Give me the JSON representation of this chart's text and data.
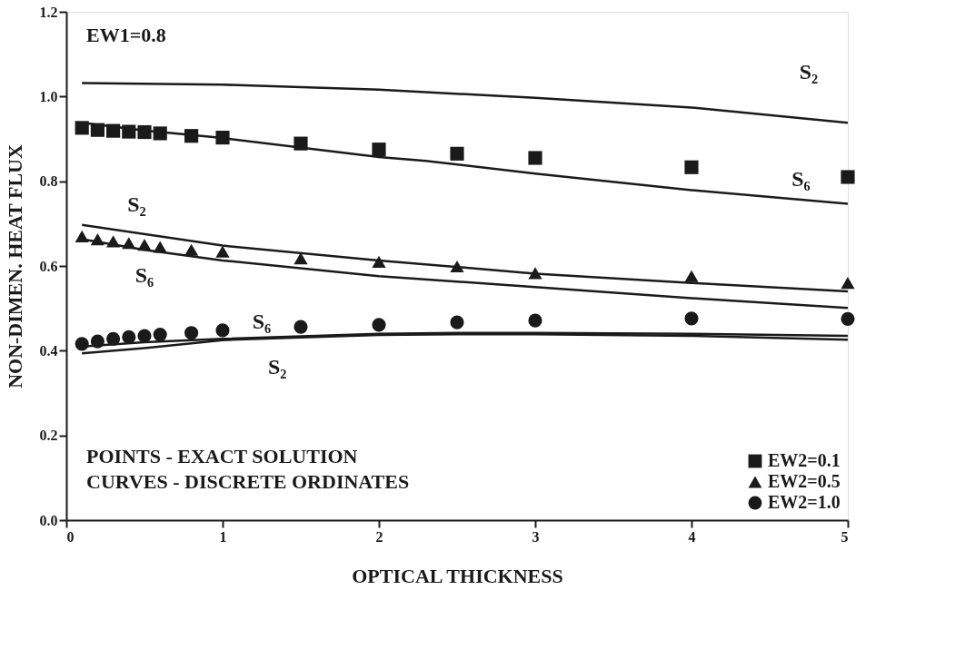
{
  "chart_data": {
    "type": "line",
    "xlabel": "OPTICAL THICKNESS",
    "ylabel": "NON-DIMEN. HEAT FLUX",
    "xlim": [
      0,
      5
    ],
    "xticks": [
      0,
      1,
      2,
      3,
      4,
      5
    ],
    "ylim": [
      0,
      1.2
    ],
    "yticks": [
      {
        "value": 0,
        "label": "0.0"
      },
      0.2,
      0.4,
      0.6,
      0.8,
      {
        "value": 1,
        "label": "1.0"
      },
      1.2
    ],
    "grid": false,
    "legend": "bottom right",
    "series": [
      {
        "type": "scatter",
        "name": "EW2=0.1",
        "marker": "square",
        "color": "#1a1a1a",
        "x": [
          0.1,
          0.2,
          0.3,
          0.4,
          0.5,
          0.6,
          0.8,
          1.0,
          1.5,
          2.0,
          2.5,
          3.0,
          4.0,
          5.0
        ],
        "values": [
          0.926,
          0.921,
          0.919,
          0.917,
          0.916,
          0.913,
          0.907,
          0.903,
          0.889,
          0.875,
          0.865,
          0.855,
          0.833,
          0.81
        ]
      },
      {
        "type": "scatter",
        "name": "EW2=0.5",
        "marker": "triangle",
        "color": "#1a1a1a",
        "x": [
          0.1,
          0.2,
          0.3,
          0.4,
          0.5,
          0.6,
          0.8,
          1.0,
          1.5,
          2.0,
          2.5,
          3.0,
          4.0,
          5.0
        ],
        "values": [
          0.67,
          0.663,
          0.658,
          0.654,
          0.65,
          0.645,
          0.638,
          0.634,
          0.618,
          0.61,
          0.599,
          0.583,
          0.576,
          0.56
        ]
      },
      {
        "type": "scatter",
        "name": "EW2=1.0",
        "marker": "circle",
        "color": "#1a1a1a",
        "x": [
          0.1,
          0.2,
          0.3,
          0.4,
          0.5,
          0.6,
          0.8,
          1.0,
          1.5,
          2.0,
          2.5,
          3.0,
          4.0,
          5.0
        ],
        "values": [
          0.416,
          0.422,
          0.428,
          0.432,
          0.435,
          0.438,
          0.442,
          0.448,
          0.456,
          0.461,
          0.467,
          0.471,
          0.476,
          0.475
        ]
      },
      {
        "marker": "none",
        "line_style": "solid",
        "color": "#1a1a1a",
        "x": [
          0.1,
          1,
          2,
          3,
          4,
          5
        ],
        "values": [
          1.032,
          1.028,
          1.016,
          0.997,
          0.974,
          0.938
        ]
      },
      {
        "marker": "none",
        "line_style": "solid",
        "color": "#1a1a1a",
        "x": [
          0.1,
          0.5,
          1,
          2,
          2.3,
          3,
          4,
          5
        ],
        "values": [
          0.938,
          0.92,
          0.902,
          0.857,
          0.848,
          0.818,
          0.779,
          0.747
        ]
      },
      {
        "marker": "none",
        "line_style": "solid",
        "color": "#1a1a1a",
        "x": [
          0.1,
          1,
          2,
          3,
          4,
          5
        ],
        "values": [
          0.697,
          0.648,
          0.613,
          0.582,
          0.56,
          0.54
        ]
      },
      {
        "marker": "none",
        "line_style": "solid",
        "color": "#1a1a1a",
        "x": [
          0.1,
          0.5,
          1,
          2,
          3,
          4,
          5
        ],
        "values": [
          0.663,
          0.638,
          0.613,
          0.576,
          0.55,
          0.524,
          0.501
        ]
      },
      {
        "marker": "none",
        "line_style": "solid",
        "color": "#1a1a1a",
        "x": [
          0.1,
          0.5,
          1,
          2,
          2.5,
          3,
          4,
          5
        ],
        "values": [
          0.41,
          0.42,
          0.428,
          0.44,
          0.442,
          0.442,
          0.44,
          0.435
        ]
      },
      {
        "marker": "none",
        "line_style": "solid",
        "color": "#1a1a1a",
        "x": [
          0.1,
          0.5,
          1,
          2,
          2.5,
          3,
          4,
          5
        ],
        "values": [
          0.394,
          0.406,
          0.425,
          0.437,
          0.439,
          0.439,
          0.435,
          0.426
        ]
      }
    ],
    "annotations": [
      "EW1=0.8",
      "POINTS - EXACT SOLUTION",
      "CURVES - DISCRETE ORDINATES",
      "S₂",
      "S₆",
      "S₂",
      "S₆",
      "S₆",
      "S₂"
    ]
  }
}
